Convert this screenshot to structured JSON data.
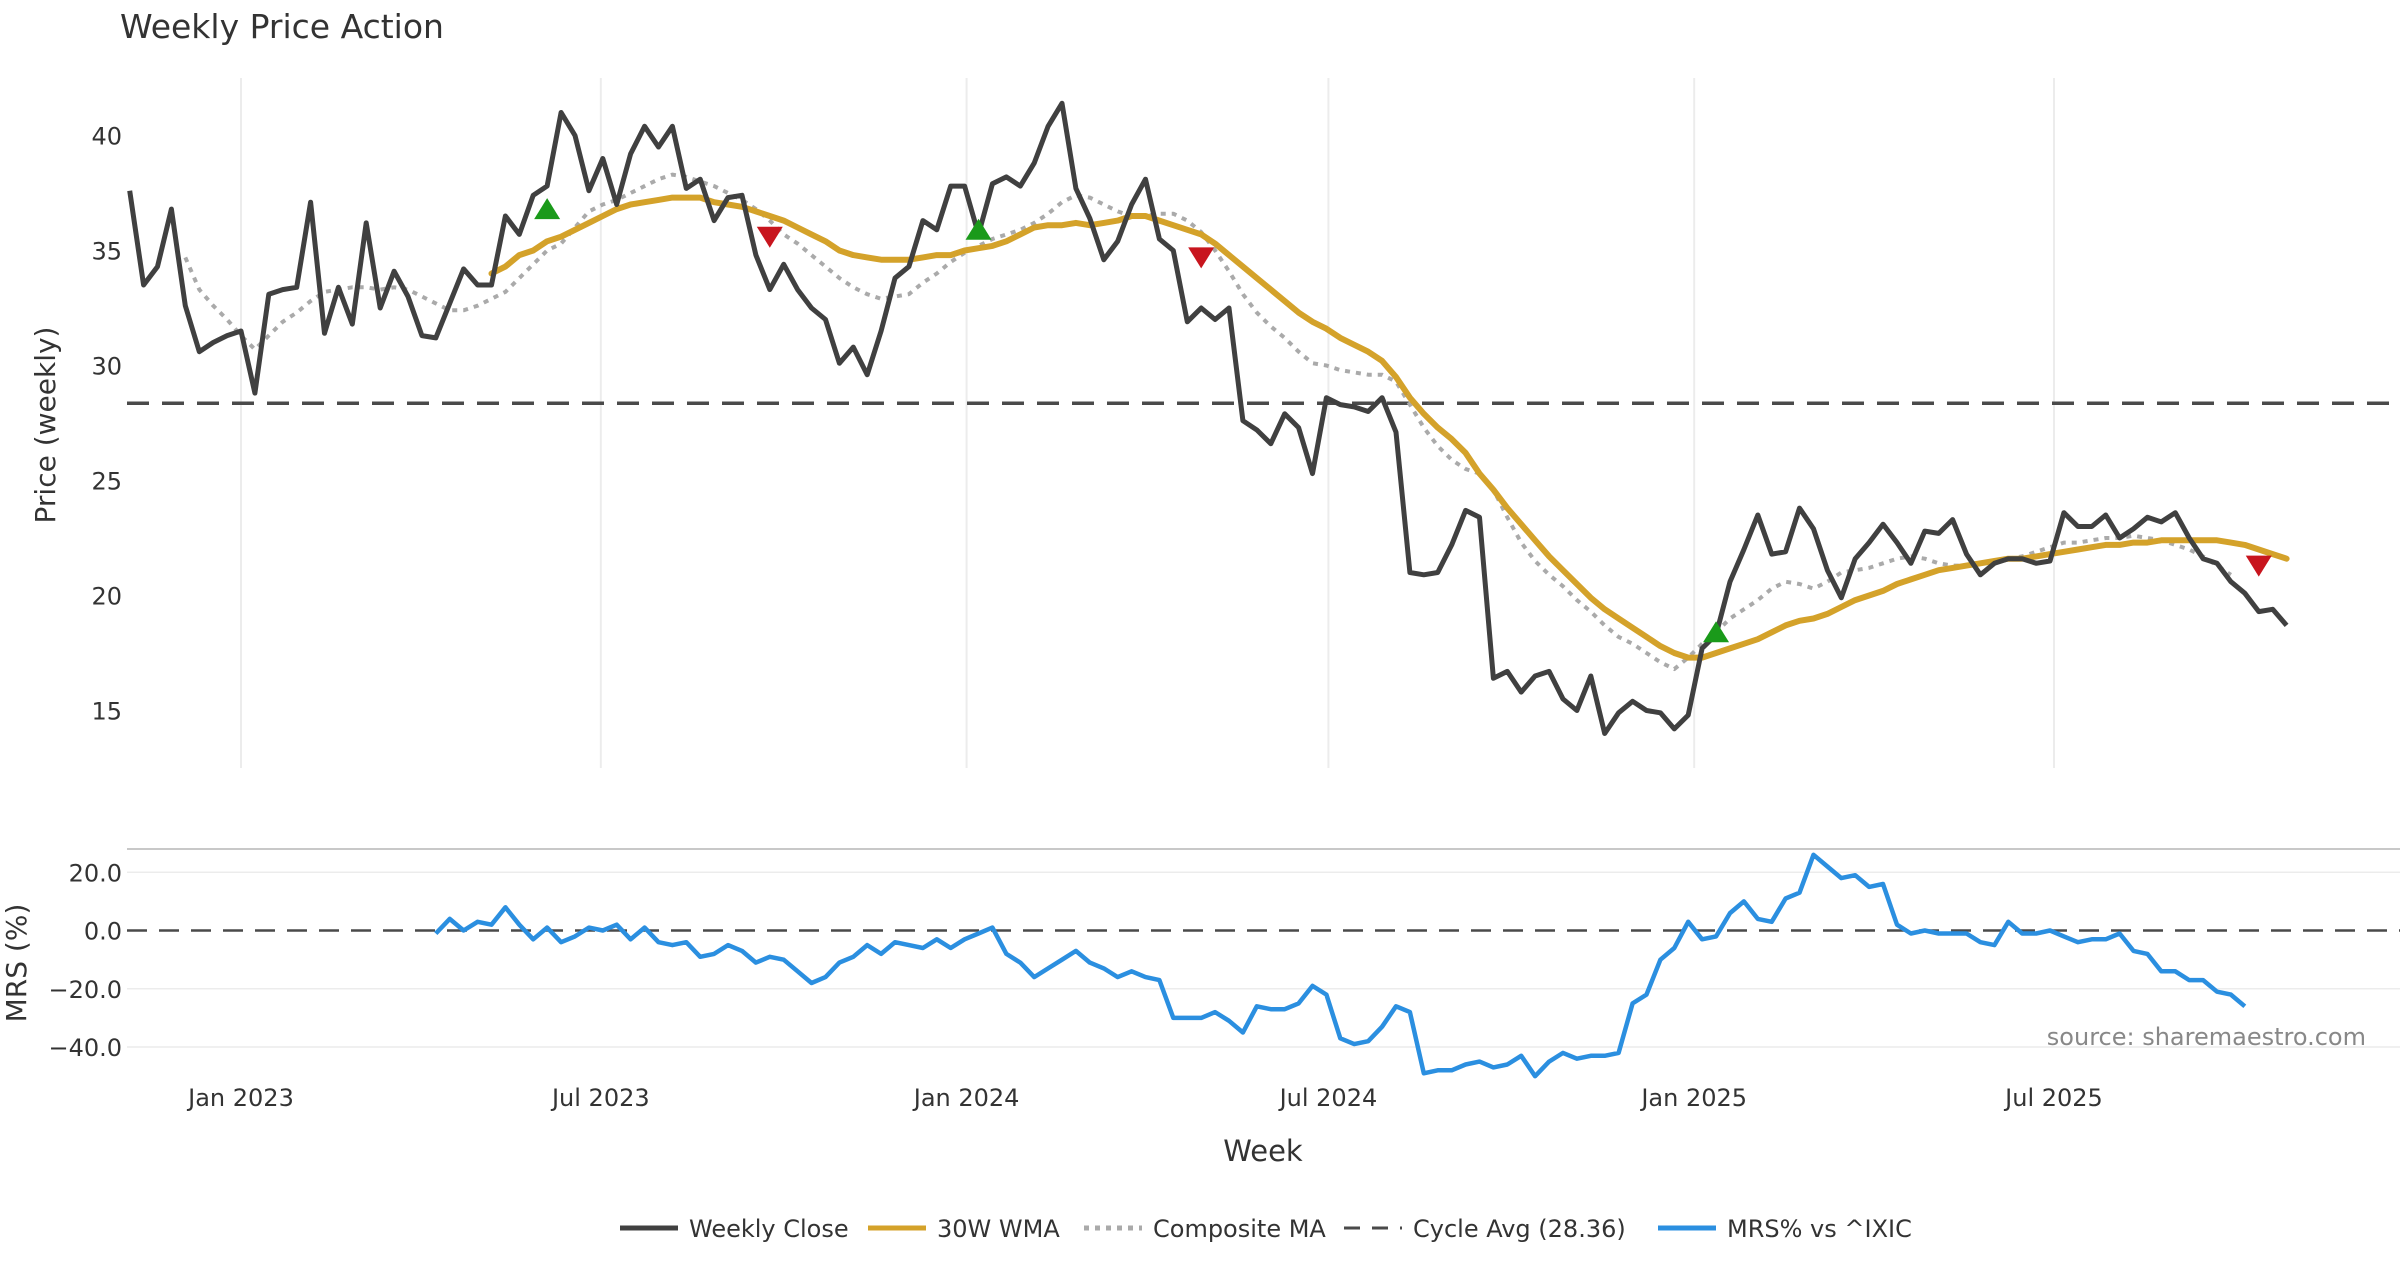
{
  "chart_data": {
    "type": "line",
    "title": "Weekly Price Action",
    "xlabel": "Week",
    "source": "source: sharemaestro.com",
    "x_ticks": [
      "Jan 2023",
      "Jul 2023",
      "Jan 2024",
      "Jul 2024",
      "Jan 2025",
      "Jul 2025"
    ],
    "price_panel": {
      "ylabel": "Price (weekly)",
      "ylim": [
        12.5,
        42.5
      ],
      "y_ticks": [
        "15",
        "20",
        "25",
        "30",
        "35",
        "40"
      ],
      "grid": true,
      "cycle_avg": 28.36,
      "weekly_close": {
        "start": "2022-11-06",
        "step_days": 7,
        "values": [
          37.6,
          33.5,
          34.3,
          36.8,
          32.6,
          30.6,
          31.0,
          31.3,
          31.5,
          28.8,
          33.1,
          33.3,
          33.4,
          37.1,
          31.4,
          33.4,
          31.8,
          36.2,
          32.5,
          34.1,
          33.0,
          31.3,
          31.2,
          32.7,
          34.2,
          33.5,
          33.5,
          36.5,
          35.7,
          37.4,
          37.8,
          41.0,
          40.0,
          37.6,
          39.0,
          37.0,
          39.2,
          40.4,
          39.5,
          40.4,
          37.7,
          38.1,
          36.3,
          37.3,
          37.4,
          34.8,
          33.3,
          34.4,
          33.3,
          32.5,
          32.0,
          30.1,
          30.8,
          29.6,
          31.5,
          33.8,
          34.3,
          36.3,
          35.9,
          37.8,
          37.8,
          35.7,
          37.9,
          38.2,
          37.8,
          38.8,
          40.4,
          41.4,
          37.7,
          36.4,
          34.6,
          35.4,
          37.0,
          38.1,
          35.5,
          35.0,
          31.9,
          32.5,
          32.0,
          32.5,
          27.6,
          27.2,
          26.6,
          27.9,
          27.3,
          25.3,
          28.6,
          28.3,
          28.2,
          28.0,
          28.6,
          27.1,
          21.0,
          20.9,
          21.0,
          22.2,
          23.7,
          23.4,
          16.4,
          16.7,
          15.8,
          16.5,
          16.7,
          15.5,
          15.0,
          16.5,
          14.0,
          14.9,
          15.4,
          15.0,
          14.9,
          14.2,
          14.8,
          17.7,
          18.3,
          20.6,
          22.0,
          23.5,
          21.8,
          21.9,
          23.8,
          22.9,
          21.1,
          19.9,
          21.6,
          22.3,
          23.1,
          22.3,
          21.4,
          22.8,
          22.7,
          23.3,
          21.8,
          20.9,
          21.4,
          21.6,
          21.6,
          21.4,
          21.5,
          23.6,
          23.0,
          23.0,
          23.5,
          22.5,
          22.9,
          23.4,
          23.2,
          23.6,
          22.5,
          21.6,
          21.4,
          20.6,
          20.1,
          19.3,
          19.4,
          18.7
        ]
      },
      "wma_30": {
        "start": "2023-05-07",
        "step_days": 7,
        "values": [
          34.0,
          34.3,
          34.8,
          35.0,
          35.4,
          35.6,
          35.9,
          36.2,
          36.5,
          36.8,
          37.0,
          37.1,
          37.2,
          37.3,
          37.3,
          37.3,
          37.1,
          37.0,
          36.9,
          36.7,
          36.5,
          36.3,
          36.0,
          35.7,
          35.4,
          35.0,
          34.8,
          34.7,
          34.6,
          34.6,
          34.6,
          34.7,
          34.8,
          34.8,
          35.0,
          35.1,
          35.2,
          35.4,
          35.7,
          36.0,
          36.1,
          36.1,
          36.2,
          36.1,
          36.2,
          36.3,
          36.5,
          36.5,
          36.3,
          36.1,
          35.9,
          35.7,
          35.3,
          34.8,
          34.3,
          33.8,
          33.3,
          32.8,
          32.3,
          31.9,
          31.6,
          31.2,
          30.9,
          30.6,
          30.2,
          29.5,
          28.6,
          27.9,
          27.3,
          26.8,
          26.2,
          25.3,
          24.6,
          23.8,
          23.1,
          22.4,
          21.7,
          21.1,
          20.5,
          19.9,
          19.4,
          19.0,
          18.6,
          18.2,
          17.8,
          17.5,
          17.3,
          17.3,
          17.5,
          17.7,
          17.9,
          18.1,
          18.4,
          18.7,
          18.9,
          19.0,
          19.2,
          19.5,
          19.8,
          20.0,
          20.2,
          20.5,
          20.7,
          20.9,
          21.1,
          21.2,
          21.3,
          21.4,
          21.5,
          21.6,
          21.6,
          21.7,
          21.8,
          21.9,
          22.0,
          22.1,
          22.2,
          22.2,
          22.3,
          22.3,
          22.4,
          22.4,
          22.4,
          22.4,
          22.4,
          22.3,
          22.2,
          22.0,
          21.8,
          21.6
        ]
      },
      "composite_ma": {
        "start": "2022-12-04",
        "step_days": 7,
        "values": [
          34.7,
          33.3,
          32.6,
          32.0,
          31.3,
          30.7,
          31.3,
          31.9,
          32.3,
          32.8,
          33.2,
          33.3,
          33.4,
          33.4,
          33.3,
          33.4,
          33.3,
          33.0,
          32.7,
          32.4,
          32.4,
          32.6,
          32.9,
          33.2,
          33.8,
          34.4,
          35.0,
          35.3,
          36.0,
          36.7,
          37.0,
          37.2,
          37.5,
          37.8,
          38.1,
          38.3,
          38.2,
          38.0,
          37.8,
          37.5,
          37.2,
          36.8,
          36.3,
          35.7,
          35.3,
          34.8,
          34.3,
          33.8,
          33.4,
          33.1,
          32.9,
          33.0,
          33.1,
          33.6,
          34.0,
          34.5,
          34.9,
          35.2,
          35.5,
          35.7,
          35.9,
          36.2,
          36.6,
          37.1,
          37.4,
          37.3,
          37.0,
          36.7,
          36.5,
          36.5,
          36.6,
          36.6,
          36.3,
          35.8,
          35.0,
          34.1,
          33.1,
          32.3,
          31.7,
          31.2,
          30.6,
          30.1,
          30.0,
          29.8,
          29.7,
          29.6,
          29.6,
          29.3,
          28.3,
          27.3,
          26.5,
          25.9,
          25.5,
          25.3,
          24.6,
          23.4,
          22.3,
          21.5,
          20.9,
          20.4,
          19.8,
          19.3,
          18.7,
          18.2,
          17.9,
          17.5,
          17.1,
          16.8,
          17.3,
          17.9,
          18.4,
          19.0,
          19.4,
          19.8,
          20.3,
          20.6,
          20.5,
          20.3,
          20.6,
          21.0,
          21.1,
          21.2,
          21.4,
          21.6,
          21.7,
          21.6,
          21.4,
          21.3,
          21.3,
          21.4,
          21.5,
          21.6,
          21.7,
          21.9,
          22.1,
          22.3,
          22.3,
          22.4,
          22.5,
          22.5,
          22.6,
          22.5,
          22.4,
          22.2,
          22.0,
          21.7,
          21.3,
          20.9
        ]
      },
      "buy_signals": [
        {
          "date": "2023-06-04",
          "y": 36.8
        },
        {
          "date": "2024-01-07",
          "y": 35.9
        },
        {
          "date": "2025-01-12",
          "y": 18.4
        }
      ],
      "sell_signals": [
        {
          "date": "2023-09-24",
          "y": 35.6
        },
        {
          "date": "2024-04-28",
          "y": 34.7
        },
        {
          "date": "2025-10-12",
          "y": 21.3
        }
      ]
    },
    "mrs_panel": {
      "ylabel": "MRS (%)",
      "ylim": [
        -52,
        28
      ],
      "y_ticks": [
        "20.0",
        "0.0",
        "−20.0",
        "−40.0"
      ],
      "zero_line": 0,
      "mrs": {
        "start": "2023-04-09",
        "step_days": 7,
        "values": [
          -1,
          4,
          0,
          3,
          2,
          8,
          2,
          -3,
          1,
          -4,
          -2,
          1,
          0,
          2,
          -3,
          1,
          -4,
          -5,
          -4,
          -9,
          -8,
          -5,
          -7,
          -11,
          -9,
          -10,
          -14,
          -18,
          -16,
          -11,
          -9,
          -5,
          -8,
          -4,
          -5,
          -6,
          -3,
          -6,
          -3,
          -1,
          1,
          -8,
          -11,
          -16,
          -13,
          -10,
          -7,
          -11,
          -13,
          -16,
          -14,
          -16,
          -17,
          -30,
          -30,
          -30,
          -28,
          -31,
          -35,
          -26,
          -27,
          -27,
          -25,
          -19,
          -22,
          -37,
          -39,
          -38,
          -33,
          -26,
          -28,
          -49,
          -48,
          -48,
          -46,
          -45,
          -47,
          -46,
          -43,
          -50,
          -45,
          -42,
          -44,
          -43,
          -43,
          -42,
          -25,
          -22,
          -10,
          -6,
          3,
          -3,
          -2,
          6,
          10,
          4,
          3,
          11,
          13,
          26,
          22,
          18,
          19,
          15,
          16,
          2,
          -1,
          0,
          -1,
          -1,
          -1,
          -4,
          -5,
          3,
          -1,
          -1,
          0,
          -2,
          -4,
          -3,
          -3,
          -1,
          -7,
          -8,
          -14,
          -14,
          -17,
          -17,
          -21,
          -22,
          -26
        ]
      }
    },
    "legend": {
      "placement": "bottom",
      "items": [
        {
          "label": "Weekly Close",
          "color": "#404040",
          "style": "solid"
        },
        {
          "label": "30W WMA",
          "color": "#d4a22a",
          "style": "solid"
        },
        {
          "label": "Composite MA",
          "color": "#aaaaaa",
          "style": "dotted"
        },
        {
          "label": "Cycle Avg (28.36)",
          "color": "#4a4a4a",
          "style": "dashed"
        },
        {
          "label": "MRS% vs ^IXIC",
          "color": "#2b8fe0",
          "style": "solid"
        }
      ]
    },
    "colors": {
      "close": "#404040",
      "wma": "#d4a22a",
      "composite": "#aaaaaa",
      "cycle": "#4a4a4a",
      "mrs": "#2b8fe0",
      "buy": "#1a9a1a",
      "sell": "#c8151e"
    }
  }
}
